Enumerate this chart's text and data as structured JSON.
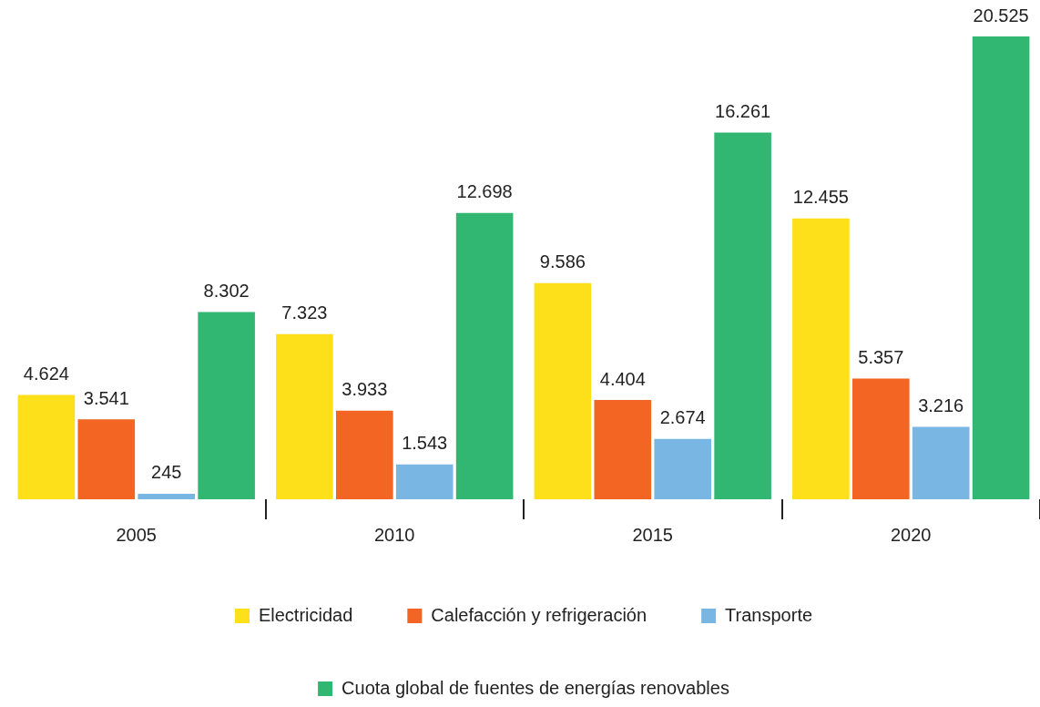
{
  "chart_data": {
    "type": "bar",
    "categories": [
      "2005",
      "2010",
      "2015",
      "2020"
    ],
    "series": [
      {
        "name": "Electricidad",
        "color": "#fde01a",
        "values": [
          4624,
          7323,
          9586,
          12455
        ],
        "value_labels": [
          "4.624",
          "7.323",
          "9.586",
          "12.455"
        ]
      },
      {
        "name": "Calefacción y refrigeración",
        "color": "#f26522",
        "values": [
          3541,
          3933,
          4404,
          5357
        ],
        "value_labels": [
          "3.541",
          "3.933",
          "4.404",
          "5.357"
        ]
      },
      {
        "name": "Transporte",
        "color": "#7ab6e3",
        "values": [
          245,
          1543,
          2674,
          3216
        ],
        "value_labels": [
          "245",
          "1.543",
          "2.674",
          "3.216"
        ]
      },
      {
        "name": "Cuota global de fuentes de energías renovables",
        "color": "#31b771",
        "values": [
          8302,
          12698,
          16261,
          20525
        ],
        "value_labels": [
          "8.302",
          "12.698",
          "16.261",
          "20.525"
        ]
      }
    ],
    "grid": false,
    "legend": "bottom"
  }
}
